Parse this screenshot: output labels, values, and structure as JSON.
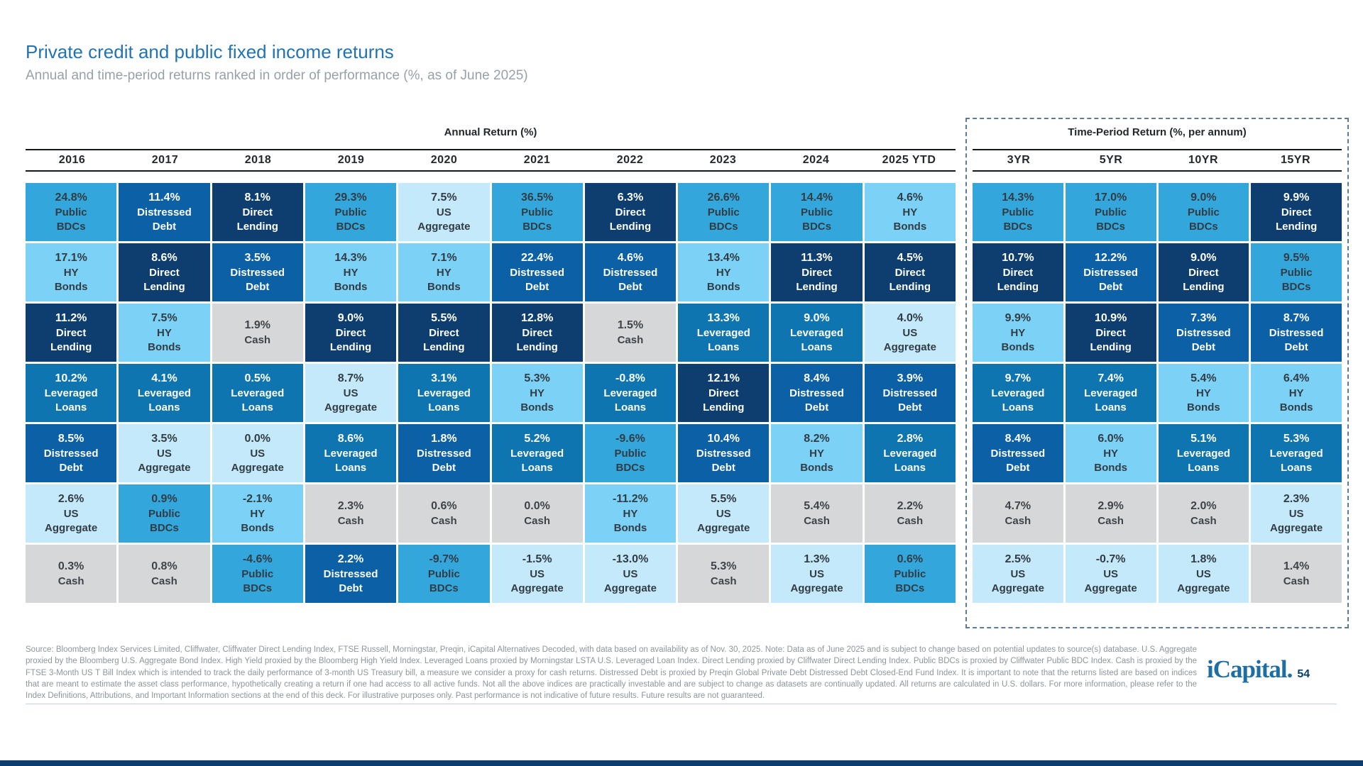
{
  "page": {
    "title": "Private credit and public fixed income returns",
    "subtitle": "Annual and time-period returns ranked in order of performance (%, as of June 2025)"
  },
  "asset_classes": {
    "Public BDCs": {
      "color": "#33A7DC",
      "text_color": "#323C44"
    },
    "HY Bonds": {
      "color": "#7BD2F6",
      "text_color": "#323C44"
    },
    "US Aggregate": {
      "color": "#C4E9FB",
      "text_color": "#323C44"
    },
    "Cash": {
      "color": "#D6D7D9",
      "text_color": "#3E4449"
    },
    "Direct Lending": {
      "color": "#0D3E6F",
      "text_color": "#FFFFFF"
    },
    "Distressed Debt": {
      "color": "#0C60A5",
      "text_color": "#FFFFFF"
    },
    "Leveraged Loans": {
      "color": "#0F75B0",
      "text_color": "#FFFFFF"
    }
  },
  "chart_data": {
    "type": "table",
    "title": "Private credit and public fixed income returns",
    "subtitle": "Annual and time-period returns ranked in order of performance (%, as of June 2025)",
    "value_unit": "%",
    "groups": [
      {
        "label": "Annual Return (%)",
        "columns": [
          {
            "period": "2016",
            "ranked_returns": [
              {
                "asset": "Public BDCs",
                "value": 24.8
              },
              {
                "asset": "HY Bonds",
                "value": 17.1
              },
              {
                "asset": "Direct Lending",
                "value": 11.2
              },
              {
                "asset": "Leveraged Loans",
                "value": 10.2
              },
              {
                "asset": "Distressed Debt",
                "value": 8.5
              },
              {
                "asset": "US Aggregate",
                "value": 2.6
              },
              {
                "asset": "Cash",
                "value": 0.3
              }
            ]
          },
          {
            "period": "2017",
            "ranked_returns": [
              {
                "asset": "Distressed Debt",
                "value": 11.4
              },
              {
                "asset": "Direct Lending",
                "value": 8.6
              },
              {
                "asset": "HY Bonds",
                "value": 7.5
              },
              {
                "asset": "Leveraged Loans",
                "value": 4.1
              },
              {
                "asset": "US Aggregate",
                "value": 3.5
              },
              {
                "asset": "Public BDCs",
                "value": 0.9
              },
              {
                "asset": "Cash",
                "value": 0.8
              }
            ]
          },
          {
            "period": "2018",
            "ranked_returns": [
              {
                "asset": "Direct Lending",
                "value": 8.1
              },
              {
                "asset": "Distressed Debt",
                "value": 3.5
              },
              {
                "asset": "Cash",
                "value": 1.9
              },
              {
                "asset": "Leveraged Loans",
                "value": 0.5
              },
              {
                "asset": "US Aggregate",
                "value": 0.0
              },
              {
                "asset": "HY Bonds",
                "value": -2.1
              },
              {
                "asset": "Public BDCs",
                "value": -4.6
              }
            ]
          },
          {
            "period": "2019",
            "ranked_returns": [
              {
                "asset": "Public BDCs",
                "value": 29.3
              },
              {
                "asset": "HY Bonds",
                "value": 14.3
              },
              {
                "asset": "Direct Lending",
                "value": 9.0
              },
              {
                "asset": "US Aggregate",
                "value": 8.7
              },
              {
                "asset": "Leveraged Loans",
                "value": 8.6
              },
              {
                "asset": "Cash",
                "value": 2.3
              },
              {
                "asset": "Distressed Debt",
                "value": 2.2
              }
            ]
          },
          {
            "period": "2020",
            "ranked_returns": [
              {
                "asset": "US Aggregate",
                "value": 7.5
              },
              {
                "asset": "HY Bonds",
                "value": 7.1
              },
              {
                "asset": "Direct Lending",
                "value": 5.5
              },
              {
                "asset": "Leveraged Loans",
                "value": 3.1
              },
              {
                "asset": "Distressed Debt",
                "value": 1.8
              },
              {
                "asset": "Cash",
                "value": 0.6
              },
              {
                "asset": "Public BDCs",
                "value": -9.7
              }
            ]
          },
          {
            "period": "2021",
            "ranked_returns": [
              {
                "asset": "Public BDCs",
                "value": 36.5
              },
              {
                "asset": "Distressed Debt",
                "value": 22.4
              },
              {
                "asset": "Direct Lending",
                "value": 12.8
              },
              {
                "asset": "HY Bonds",
                "value": 5.3
              },
              {
                "asset": "Leveraged Loans",
                "value": 5.2
              },
              {
                "asset": "Cash",
                "value": 0.0
              },
              {
                "asset": "US Aggregate",
                "value": -1.5
              }
            ]
          },
          {
            "period": "2022",
            "ranked_returns": [
              {
                "asset": "Direct Lending",
                "value": 6.3
              },
              {
                "asset": "Distressed Debt",
                "value": 4.6
              },
              {
                "asset": "Cash",
                "value": 1.5
              },
              {
                "asset": "Leveraged Loans",
                "value": -0.8
              },
              {
                "asset": "Public BDCs",
                "value": -9.6
              },
              {
                "asset": "HY Bonds",
                "value": -11.2
              },
              {
                "asset": "US Aggregate",
                "value": -13.0
              }
            ]
          },
          {
            "period": "2023",
            "ranked_returns": [
              {
                "asset": "Public BDCs",
                "value": 26.6
              },
              {
                "asset": "HY Bonds",
                "value": 13.4
              },
              {
                "asset": "Leveraged Loans",
                "value": 13.3
              },
              {
                "asset": "Direct Lending",
                "value": 12.1
              },
              {
                "asset": "Distressed Debt",
                "value": 10.4
              },
              {
                "asset": "US Aggregate",
                "value": 5.5
              },
              {
                "asset": "Cash",
                "value": 5.3
              }
            ]
          },
          {
            "period": "2024",
            "ranked_returns": [
              {
                "asset": "Public BDCs",
                "value": 14.4
              },
              {
                "asset": "Direct Lending",
                "value": 11.3
              },
              {
                "asset": "Leveraged Loans",
                "value": 9.0
              },
              {
                "asset": "Distressed Debt",
                "value": 8.4
              },
              {
                "asset": "HY Bonds",
                "value": 8.2
              },
              {
                "asset": "Cash",
                "value": 5.4
              },
              {
                "asset": "US Aggregate",
                "value": 1.3
              }
            ]
          },
          {
            "period": "2025 YTD",
            "ranked_returns": [
              {
                "asset": "HY Bonds",
                "value": 4.6
              },
              {
                "asset": "Direct Lending",
                "value": 4.5
              },
              {
                "asset": "US Aggregate",
                "value": 4.0
              },
              {
                "asset": "Distressed Debt",
                "value": 3.9
              },
              {
                "asset": "Leveraged Loans",
                "value": 2.8
              },
              {
                "asset": "Cash",
                "value": 2.2
              },
              {
                "asset": "Public BDCs",
                "value": 0.6
              }
            ]
          }
        ]
      },
      {
        "label": "Time-Period Return (%, per annum)",
        "columns": [
          {
            "period": "3YR",
            "ranked_returns": [
              {
                "asset": "Public BDCs",
                "value": 14.3
              },
              {
                "asset": "Direct Lending",
                "value": 10.7
              },
              {
                "asset": "HY Bonds",
                "value": 9.9
              },
              {
                "asset": "Leveraged Loans",
                "value": 9.7
              },
              {
                "asset": "Distressed Debt",
                "value": 8.4
              },
              {
                "asset": "Cash",
                "value": 4.7
              },
              {
                "asset": "US Aggregate",
                "value": 2.5
              }
            ]
          },
          {
            "period": "5YR",
            "ranked_returns": [
              {
                "asset": "Public BDCs",
                "value": 17.0
              },
              {
                "asset": "Distressed Debt",
                "value": 12.2
              },
              {
                "asset": "Direct Lending",
                "value": 10.9
              },
              {
                "asset": "Leveraged Loans",
                "value": 7.4
              },
              {
                "asset": "HY Bonds",
                "value": 6.0
              },
              {
                "asset": "Cash",
                "value": 2.9
              },
              {
                "asset": "US Aggregate",
                "value": -0.7
              }
            ]
          },
          {
            "period": "10YR",
            "ranked_returns": [
              {
                "asset": "Public BDCs",
                "value": 9.0
              },
              {
                "asset": "Direct Lending",
                "value": 9.0
              },
              {
                "asset": "Distressed Debt",
                "value": 7.3
              },
              {
                "asset": "HY Bonds",
                "value": 5.4
              },
              {
                "asset": "Leveraged Loans",
                "value": 5.1
              },
              {
                "asset": "Cash",
                "value": 2.0
              },
              {
                "asset": "US Aggregate",
                "value": 1.8
              }
            ]
          },
          {
            "period": "15YR",
            "ranked_returns": [
              {
                "asset": "Direct Lending",
                "value": 9.9
              },
              {
                "asset": "Public BDCs",
                "value": 9.5
              },
              {
                "asset": "Distressed Debt",
                "value": 8.7
              },
              {
                "asset": "HY Bonds",
                "value": 6.4
              },
              {
                "asset": "Leveraged Loans",
                "value": 5.3
              },
              {
                "asset": "US Aggregate",
                "value": 2.3
              },
              {
                "asset": "Cash",
                "value": 1.4
              }
            ]
          }
        ]
      }
    ]
  },
  "footer": {
    "text": "Source: Bloomberg Index Services Limited, Cliffwater, Cliffwater Direct Lending Index, FTSE Russell, Morningstar, Preqin, iCapital Alternatives Decoded, with data based on availability as of Nov. 30, 2025. Note: Data as of June 2025 and is subject to change based on potential updates to source(s) database. U.S. Aggregate proxied by the Bloomberg U.S. Aggregate Bond Index. High Yield proxied by the Bloomberg High Yield Index. Leveraged Loans proxied by Morningstar LSTA U.S. Leveraged Loan Index. Direct Lending proxied by Cliffwater Direct Lending Index. Public BDCs is proxied by Cliffwater Public BDC Index. Cash is proxied by the FTSE 3-Month US T Bill Index which is intended to track the daily performance of 3-month US Treasury bill, a measure we consider a proxy for cash returns. Distressed Debt is proxied by Preqin Global Private Debt Distressed Debt Closed-End Fund Index. It is important to note that the returns listed are based on indices that are meant to estimate the asset class performance, hypothetically creating a return if one had access to all active funds. Not all the above indices are practically investable and are subject to change as datasets are continually updated. All returns are calculated in U.S. dollars. For more information, please refer to the Index Definitions, Attributions, and Important Information sections at the end of this deck. For illustrative purposes only. Past performance is not indicative of future results. Future results are not guaranteed."
  },
  "branding": {
    "logo_text": "iCapital.",
    "page_number": "54",
    "accent_color": "#0D3D6E"
  }
}
